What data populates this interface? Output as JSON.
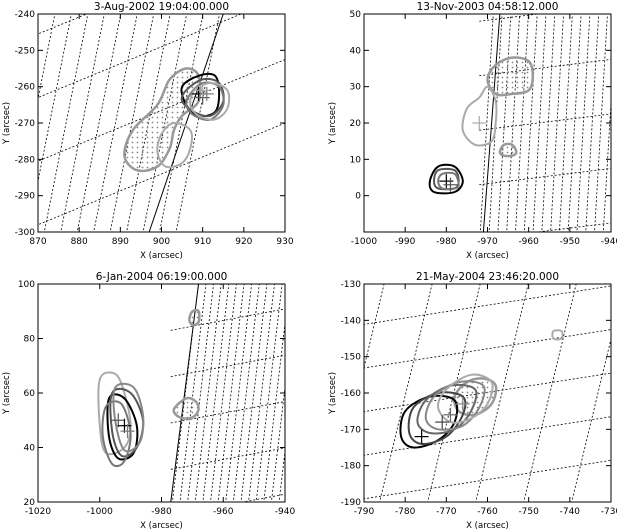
{
  "chart_data": [
    {
      "type": "contour",
      "title": "3-Aug-2002 19:04:00.000",
      "xlabel": "X (arcsec)",
      "ylabel": "Y (arcsec)",
      "xlim": [
        870,
        930
      ],
      "ylim": [
        -300,
        -240
      ],
      "xticks": [
        870,
        880,
        890,
        900,
        910,
        920,
        930
      ],
      "yticks": [
        -300,
        -290,
        -280,
        -270,
        -260,
        -250,
        -240
      ],
      "grid": true,
      "limb": [
        [
          897,
          -300
        ],
        [
          915,
          -240
        ]
      ],
      "grid_lines": {
        "a": {
          "angle": 80,
          "count": 16,
          "x0": 840,
          "x1": 900,
          "y": -320
        },
        "b": {
          "angle": 25,
          "count": 5,
          "x": 855,
          "y0": -305,
          "y1": -235
        }
      },
      "dotted_sources": [
        {
          "color": "#999999",
          "points": [
            [
              902,
              -258
            ],
            [
              906,
              -255
            ],
            [
              909,
              -257
            ],
            [
              909,
              -264
            ],
            [
              905,
              -268
            ],
            [
              903,
              -272
            ],
            [
              902,
              -277
            ],
            [
              899,
              -282
            ],
            [
              894,
              -283
            ],
            [
              891,
              -279
            ],
            [
              893,
              -272
            ],
            [
              899,
              -265
            ]
          ]
        }
      ],
      "contours": [
        {
          "color": "#aaaaaa",
          "points": [
            [
              903,
              -270
            ],
            [
              907,
              -272
            ],
            [
              907,
              -277
            ],
            [
              905,
              -281
            ],
            [
              901,
              -282
            ],
            [
              899,
              -278
            ],
            [
              900,
              -273
            ]
          ]
        },
        {
          "color": "#000000",
          "points": [
            [
              905,
              -260
            ],
            [
              909,
              -257
            ],
            [
              913,
              -257
            ],
            [
              914,
              -262
            ],
            [
              913,
              -267
            ],
            [
              909,
              -268
            ],
            [
              906,
              -265
            ]
          ]
        },
        {
          "color": "#555555",
          "points": [
            [
              906,
              -261
            ],
            [
              910,
              -258
            ],
            [
              914,
              -259
            ],
            [
              915,
              -264
            ],
            [
              912,
              -268
            ],
            [
              908,
              -267
            ],
            [
              905,
              -264
            ]
          ]
        },
        {
          "color": "#777777",
          "points": [
            [
              907,
              -262
            ],
            [
              910,
              -259
            ],
            [
              914,
              -260
            ],
            [
              915,
              -265
            ],
            [
              912,
              -269
            ],
            [
              908,
              -268
            ],
            [
              906,
              -265
            ]
          ]
        },
        {
          "color": "#aaaaaa",
          "points": [
            [
              908,
              -261
            ],
            [
              912,
              -259
            ],
            [
              916,
              -261
            ],
            [
              916,
              -266
            ],
            [
              913,
              -269
            ],
            [
              909,
              -268
            ],
            [
              907,
              -265
            ]
          ]
        }
      ],
      "crosses": [
        {
          "x": 909,
          "y": -262,
          "color": "#000000"
        },
        {
          "x": 910,
          "y": -263,
          "color": "#555555"
        },
        {
          "x": 911,
          "y": -262,
          "color": "#777777"
        },
        {
          "x": 910,
          "y": -261,
          "color": "#aaaaaa"
        }
      ]
    },
    {
      "type": "contour",
      "title": "13-Nov-2003 04:58:12.000",
      "xlabel": "X (arcsec)",
      "ylabel": "Y (arcsec)",
      "xlim": [
        -1000,
        -940
      ],
      "ylim": [
        -10,
        50
      ],
      "xticks": [
        -1000,
        -990,
        -980,
        -970,
        -960,
        -950,
        -940
      ],
      "yticks": [
        0,
        10,
        20,
        30,
        40,
        50
      ],
      "grid": true,
      "limb": [
        [
          -971,
          -10
        ],
        [
          -967,
          50
        ]
      ],
      "grid_lines": {
        "a": {
          "angle": 87,
          "count": 16,
          "x0": -972,
          "x1": -940,
          "y": -15
        },
        "b": {
          "angle": 8,
          "count": 5,
          "x": -972,
          "y0": -12,
          "y1": 48
        }
      },
      "dotted_sources": [
        {
          "color": "#999999",
          "points": [
            [
              -968,
              36
            ],
            [
              -964,
              38
            ],
            [
              -960,
              37
            ],
            [
              -959,
              33
            ],
            [
              -960,
              29
            ],
            [
              -964,
              28
            ],
            [
              -968,
              28
            ],
            [
              -970,
              32
            ]
          ]
        },
        {
          "color": "#999999",
          "points": [
            [
              -966,
              14
            ],
            [
              -964,
              14
            ],
            [
              -963,
              12
            ],
            [
              -964,
              11
            ],
            [
              -966,
              11
            ],
            [
              -967,
              12
            ]
          ]
        }
      ],
      "contours": [
        {
          "color": "#aaaaaa",
          "points": [
            [
              -972,
              27
            ],
            [
              -970,
              30
            ],
            [
              -968,
              26
            ],
            [
              -968,
              20
            ],
            [
              -969,
              15
            ],
            [
              -973,
              14
            ],
            [
              -976,
              18
            ],
            [
              -975,
              24
            ]
          ]
        },
        {
          "color": "#000000",
          "points": [
            [
              -982,
              8
            ],
            [
              -978,
              8
            ],
            [
              -976,
              4
            ],
            [
              -978,
              1
            ],
            [
              -983,
              1
            ],
            [
              -984,
              4
            ]
          ]
        },
        {
          "color": "#555555",
          "points": [
            [
              -982,
              7
            ],
            [
              -978,
              7
            ],
            [
              -977,
              4
            ],
            [
              -978,
              2
            ],
            [
              -982,
              2
            ],
            [
              -983,
              4
            ]
          ]
        },
        {
          "color": "#777777",
          "points": [
            [
              -981,
              6
            ],
            [
              -978,
              6
            ],
            [
              -977,
              3
            ],
            [
              -978,
              2
            ],
            [
              -981,
              2
            ],
            [
              -982,
              4
            ]
          ]
        }
      ],
      "crosses": [
        {
          "x": -980,
          "y": 4,
          "color": "#000000"
        },
        {
          "x": -979,
          "y": 3,
          "color": "#555555"
        },
        {
          "x": -972,
          "y": 20,
          "color": "#aaaaaa"
        }
      ]
    },
    {
      "type": "contour",
      "title": "6-Jan-2004 06:19:00.000",
      "xlabel": "X (arcsec)",
      "ylabel": "Y (arcsec)",
      "xlim": [
        -1020,
        -940
      ],
      "ylim": [
        20,
        100
      ],
      "xticks": [
        -1020,
        -1000,
        -980,
        -960,
        -940
      ],
      "yticks": [
        20,
        40,
        60,
        80,
        100
      ],
      "grid": true,
      "limb": [
        [
          -977,
          20
        ],
        [
          -968,
          100
        ]
      ],
      "grid_lines": {
        "a": {
          "angle": 84,
          "count": 16,
          "x0": -977,
          "x1": -940,
          "y": 15
        },
        "b": {
          "angle": 12,
          "count": 6,
          "x": -977,
          "y0": 15,
          "y1": 100
        }
      },
      "dotted_sources": [
        {
          "color": "#999999",
          "points": [
            [
              -972,
              58
            ],
            [
              -969,
              57
            ],
            [
              -968,
              54
            ],
            [
              -970,
              51
            ],
            [
              -974,
              51
            ],
            [
              -976,
              54
            ]
          ]
        },
        {
          "color": "#999999",
          "points": [
            [
              -970,
              90
            ],
            [
              -968,
              90
            ],
            [
              -968,
              86
            ],
            [
              -970,
              85
            ],
            [
              -971,
              87
            ]
          ]
        }
      ],
      "contours": [
        {
          "color": "#aaaaaa",
          "points": [
            [
              -1000,
              65
            ],
            [
              -995,
              67
            ],
            [
              -992,
              60
            ],
            [
              -990,
              48
            ],
            [
              -992,
              40
            ],
            [
              -998,
              38
            ],
            [
              -1000,
              48
            ]
          ]
        },
        {
          "color": "#000000",
          "points": [
            [
              -997,
              58
            ],
            [
              -992,
              58
            ],
            [
              -988,
              48
            ],
            [
              -989,
              38
            ],
            [
              -994,
              36
            ],
            [
              -997,
              44
            ]
          ]
        },
        {
          "color": "#555555",
          "points": [
            [
              -996,
              60
            ],
            [
              -990,
              60
            ],
            [
              -986,
              50
            ],
            [
              -988,
              40
            ],
            [
              -993,
              37
            ],
            [
              -996,
              46
            ]
          ]
        },
        {
          "color": "#777777",
          "points": [
            [
              -998,
              55
            ],
            [
              -993,
              56
            ],
            [
              -990,
              45
            ],
            [
              -992,
              35
            ],
            [
              -996,
              34
            ],
            [
              -999,
              44
            ]
          ]
        },
        {
          "color": "#888888",
          "points": [
            [
              -995,
              62
            ],
            [
              -989,
              62
            ],
            [
              -986,
              52
            ],
            [
              -987,
              42
            ],
            [
              -992,
              39
            ],
            [
              -995,
              50
            ]
          ]
        }
      ],
      "crosses": [
        {
          "x": -994,
          "y": 50,
          "color": "#555555"
        },
        {
          "x": -992,
          "y": 48,
          "color": "#000000"
        },
        {
          "x": -991,
          "y": 46,
          "color": "#777777"
        }
      ]
    },
    {
      "type": "contour",
      "title": "21-May-2004 23:46:20.000",
      "xlabel": "X (arcsec)",
      "ylabel": "Y (arcsec)",
      "xlim": [
        -790,
        -730
      ],
      "ylim": [
        -190,
        -130
      ],
      "xticks": [
        -790,
        -780,
        -770,
        -760,
        -750,
        -740,
        -730
      ],
      "yticks": [
        -190,
        -180,
        -170,
        -160,
        -150,
        -140,
        -130
      ],
      "grid": true,
      "limb": null,
      "grid_lines": {
        "a": {
          "angle": 78,
          "count": 7,
          "x0": -800,
          "x1": -730,
          "y": -200
        },
        "b": {
          "angle": 10,
          "count": 6,
          "x": -795,
          "y0": -190,
          "y1": -130
        }
      },
      "dotted_sources": [
        {
          "color": "#999999",
          "points": [
            [
              -765,
              -157
            ],
            [
              -761,
              -156
            ],
            [
              -758,
              -158
            ],
            [
              -759,
              -163
            ],
            [
              -763,
              -166
            ],
            [
              -767,
              -165
            ],
            [
              -768,
              -161
            ]
          ]
        }
      ],
      "contours": [
        {
          "color": "#aaaaaa",
          "points": [
            [
              -744,
              -143
            ],
            [
              -742,
              -143
            ],
            [
              -742,
              -145
            ],
            [
              -744,
              -145
            ]
          ]
        },
        {
          "color": "#000000",
          "points": [
            [
              -780,
              -165
            ],
            [
              -774,
              -161
            ],
            [
              -768,
              -162
            ],
            [
              -768,
              -168
            ],
            [
              -772,
              -173
            ],
            [
              -778,
              -175
            ],
            [
              -781,
              -172
            ]
          ]
        },
        {
          "color": "#444444",
          "points": [
            [
              -778,
              -164
            ],
            [
              -772,
              -160
            ],
            [
              -766,
              -161
            ],
            [
              -766,
              -166
            ],
            [
              -770,
              -172
            ],
            [
              -776,
              -174
            ],
            [
              -779,
              -171
            ]
          ]
        },
        {
          "color": "#666666",
          "points": [
            [
              -775,
              -162
            ],
            [
              -769,
              -158
            ],
            [
              -763,
              -159
            ],
            [
              -764,
              -165
            ],
            [
              -768,
              -170
            ],
            [
              -774,
              -171
            ],
            [
              -777,
              -168
            ]
          ]
        },
        {
          "color": "#888888",
          "points": [
            [
              -773,
              -161
            ],
            [
              -767,
              -157
            ],
            [
              -761,
              -158
            ],
            [
              -762,
              -164
            ],
            [
              -766,
              -169
            ],
            [
              -772,
              -170
            ],
            [
              -775,
              -167
            ]
          ]
        },
        {
          "color": "#aaaaaa",
          "points": [
            [
              -770,
              -159
            ],
            [
              -764,
              -155
            ],
            [
              -759,
              -157
            ],
            [
              -760,
              -163
            ],
            [
              -764,
              -167
            ],
            [
              -769,
              -168
            ],
            [
              -772,
              -164
            ]
          ]
        }
      ],
      "crosses": [
        {
          "x": -776,
          "y": -172,
          "color": "#000000"
        },
        {
          "x": -771,
          "y": -168,
          "color": "#444444"
        },
        {
          "x": -769,
          "y": -166,
          "color": "#666666"
        },
        {
          "x": -766,
          "y": -163,
          "color": "#888888"
        }
      ]
    }
  ]
}
